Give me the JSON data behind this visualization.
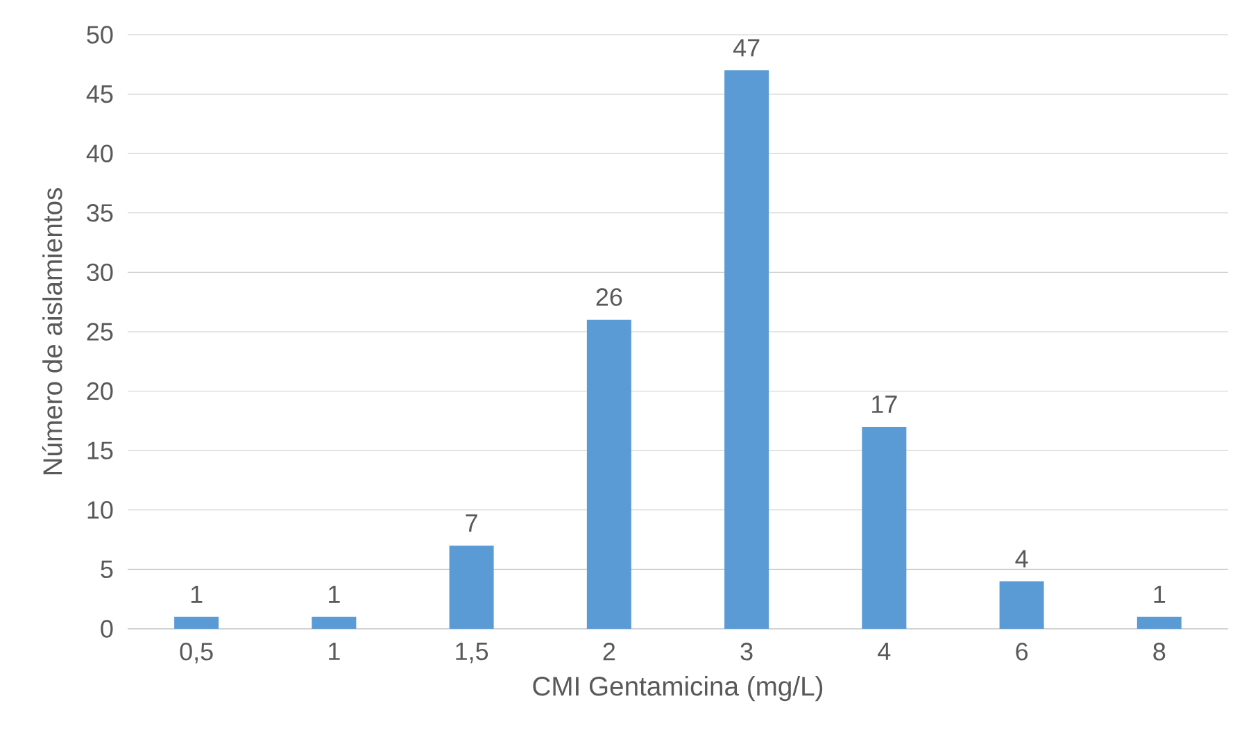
{
  "chart_data": {
    "type": "bar",
    "xlabel": "CMI Gentamicina (mg/L)",
    "ylabel": "Número de aislamientos",
    "categories": [
      "0,5",
      "1",
      "1,5",
      "2",
      "3",
      "4",
      "6",
      "8"
    ],
    "values": [
      1,
      1,
      7,
      26,
      47,
      17,
      4,
      1
    ],
    "color": "#5b9bd5",
    "ylim": [
      0,
      50
    ],
    "yticks": [
      0,
      5,
      10,
      15,
      20,
      25,
      30,
      35,
      40,
      45,
      50
    ],
    "grid": "y",
    "data_labels": true
  }
}
